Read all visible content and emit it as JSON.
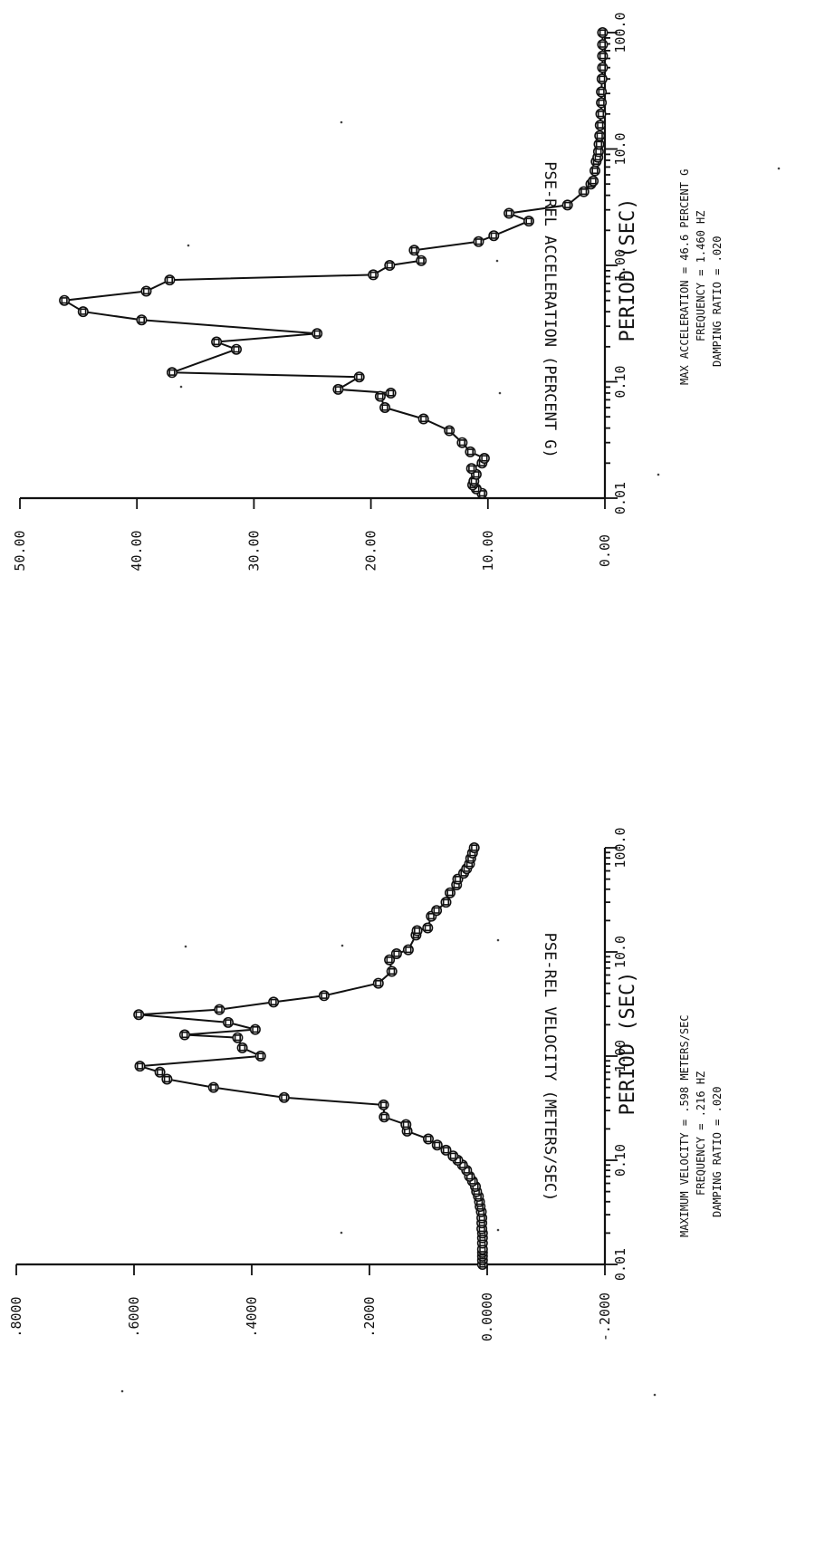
{
  "chart_data": [
    {
      "type": "line",
      "ylabel": "PSE-REL ACCELERATION (PERCENT G)",
      "xlabel": "PERIOD (SEC)",
      "xscale": "log",
      "xlim": [
        0.01,
        100.0
      ],
      "ylim": [
        0.0,
        50.0
      ],
      "x_ticks": [
        "0.01",
        "0.10",
        "1.00",
        "10.0",
        "100.0"
      ],
      "y_ticks": [
        "0.00",
        "10.00",
        "20.00",
        "30.00",
        "40.00",
        "50.00"
      ],
      "series": [
        {
          "x": [
            0.011,
            0.012,
            0.013,
            0.014,
            0.016,
            0.018,
            0.02,
            0.022,
            0.025,
            0.03,
            0.038,
            0.048,
            0.06,
            0.075,
            0.08,
            0.086,
            0.11,
            0.12,
            0.19,
            0.22,
            0.26,
            0.34,
            0.4,
            0.5,
            0.6,
            0.75,
            0.83,
            1.0,
            1.1,
            1.35,
            1.6,
            1.8,
            2.4,
            2.8,
            3.3,
            4.3,
            5.0,
            5.3,
            6.5,
            7.8,
            8.5,
            9.5,
            11,
            13,
            16,
            20,
            25,
            31,
            40,
            50,
            63,
            79,
            100
          ],
          "y": [
            10.5,
            11.0,
            11.3,
            11.2,
            11.0,
            11.4,
            10.5,
            10.3,
            11.5,
            12.2,
            13.3,
            15.5,
            18.8,
            19.2,
            18.3,
            22.8,
            21.0,
            37.0,
            31.5,
            33.2,
            24.6,
            39.6,
            44.6,
            46.2,
            39.2,
            37.2,
            19.8,
            18.4,
            15.7,
            16.3,
            10.8,
            9.5,
            6.5,
            8.2,
            3.2,
            1.8,
            1.2,
            1.0,
            0.85,
            0.75,
            0.6,
            0.55,
            0.5,
            0.45,
            0.4,
            0.35,
            0.3,
            0.3,
            0.25,
            0.2,
            0.2,
            0.2,
            0.2
          ]
        }
      ],
      "annotations": [
        "MAX ACCELERATION =   46.6 PERCENT G",
        "FREQUENCY =   1.460 HZ",
        "DAMPING RATIO =   .020"
      ]
    },
    {
      "type": "line",
      "ylabel": "PSE-REL VELOCITY (METERS/SEC)",
      "xlabel": "PERIOD (SEC)",
      "xscale": "log",
      "xlim": [
        0.01,
        100.0
      ],
      "ylim": [
        -0.2,
        0.8
      ],
      "x_ticks": [
        "0.01",
        "0.10",
        "1.00",
        "10.0",
        "100.0"
      ],
      "y_ticks": [
        "-.2000",
        "0.0000",
        ".2000",
        ".4000",
        ".6000",
        ".8000"
      ],
      "series": [
        {
          "x": [
            0.01,
            0.011,
            0.012,
            0.013,
            0.014,
            0.016,
            0.018,
            0.02,
            0.022,
            0.025,
            0.028,
            0.032,
            0.036,
            0.04,
            0.045,
            0.05,
            0.056,
            0.063,
            0.07,
            0.08,
            0.09,
            0.1,
            0.11,
            0.125,
            0.14,
            0.16,
            0.19,
            0.22,
            0.26,
            0.34,
            0.4,
            0.5,
            0.6,
            0.7,
            0.8,
            1.0,
            1.2,
            1.5,
            1.6,
            1.8,
            2.1,
            2.5,
            2.8,
            3.3,
            3.8,
            5.0,
            6.5,
            8.4,
            9.6,
            10.5,
            14.5,
            16,
            17,
            22,
            25,
            30,
            37,
            44,
            50,
            57,
            63,
            70,
            79,
            89,
            100
          ],
          "y": [
            0.008,
            0.008,
            0.008,
            0.008,
            0.008,
            0.008,
            0.008,
            0.008,
            0.009,
            0.009,
            0.009,
            0.01,
            0.012,
            0.013,
            0.015,
            0.018,
            0.02,
            0.025,
            0.03,
            0.035,
            0.042,
            0.05,
            0.058,
            0.07,
            0.085,
            0.1,
            0.136,
            0.138,
            0.175,
            0.176,
            0.345,
            0.465,
            0.544,
            0.556,
            0.59,
            0.385,
            0.416,
            0.424,
            0.514,
            0.394,
            0.44,
            0.592,
            0.455,
            0.363,
            0.277,
            0.185,
            0.162,
            0.166,
            0.154,
            0.134,
            0.121,
            0.119,
            0.101,
            0.095,
            0.086,
            0.07,
            0.063,
            0.052,
            0.05,
            0.04,
            0.035,
            0.03,
            0.028,
            0.025,
            0.022
          ]
        }
      ],
      "annotations": [
        "MAXIMUM VELOCITY =   .598 METERS/SEC",
        "FREQUENCY =   .216 HZ",
        "DAMPING RATIO =   .020"
      ]
    }
  ]
}
